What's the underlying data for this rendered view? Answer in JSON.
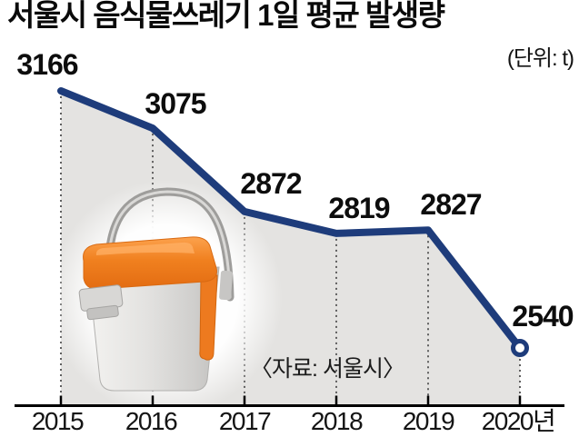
{
  "chart_data": {
    "type": "line",
    "title": "서울시 음식물쓰레기 1일 평균 발생량",
    "unit_label": "(단위: t)",
    "source_label": "〈자료: 서울시〉",
    "categories": [
      "2015",
      "2016",
      "2017",
      "2018",
      "2019",
      "2020년"
    ],
    "values": [
      3166,
      3075,
      2872,
      2819,
      2827,
      2540
    ],
    "xlabel": "",
    "ylabel": "",
    "ylim": [
      2400,
      3250
    ],
    "grid": "off",
    "legend": "none",
    "line_color": "#1e3c7b",
    "area_color": "#e4e3e1",
    "dotted_guide_color": "#5f5f5f",
    "axis_color": "#000000",
    "marker": "open-circle-on-last-point",
    "illustration": "food-waste-bin"
  }
}
